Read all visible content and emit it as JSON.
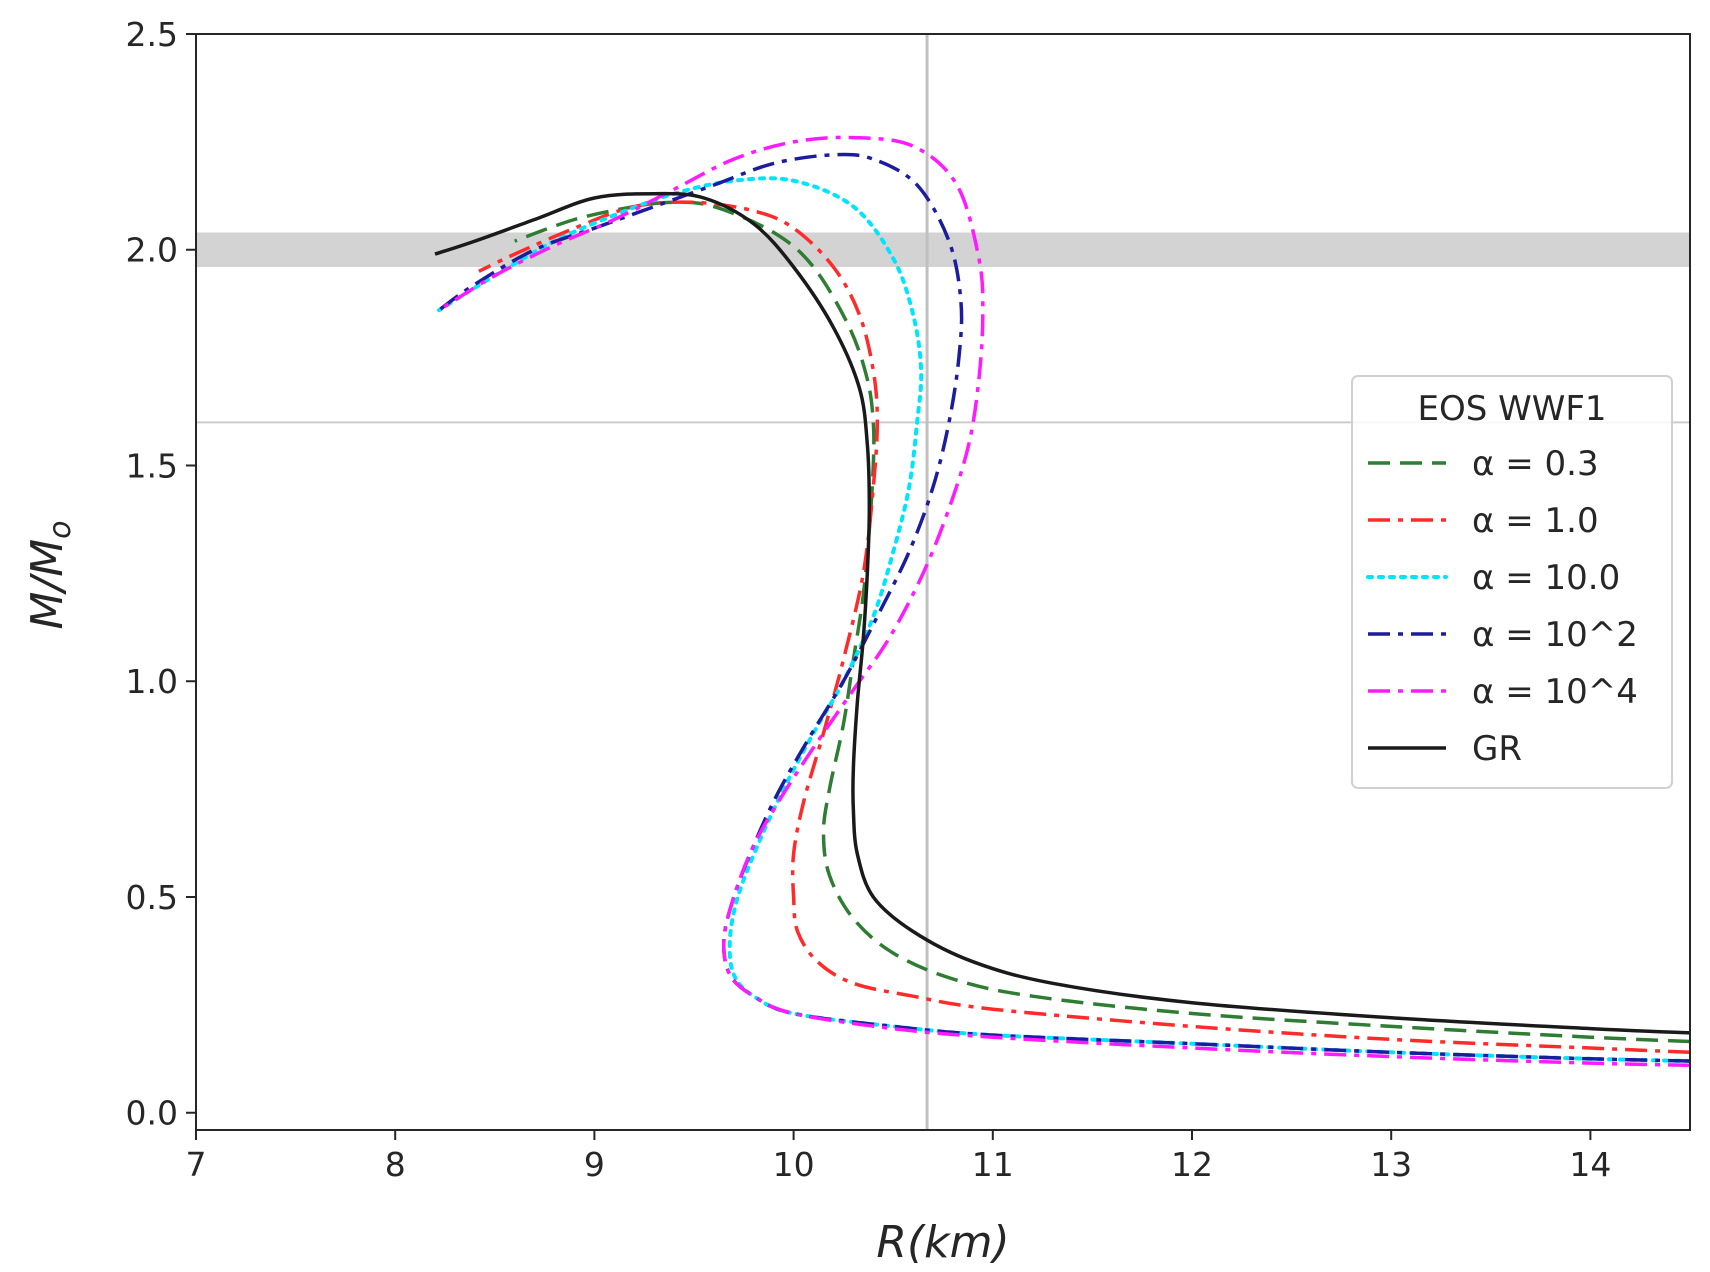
{
  "chart_data": {
    "type": "line",
    "title": "",
    "xlabel": "R(km)",
    "ylabel": "M/M",
    "ylabel_subscript": "o",
    "xlim": [
      7,
      14.5
    ],
    "ylim": [
      -0.04,
      2.5
    ],
    "xticks": [
      7,
      8,
      9,
      10,
      11,
      12,
      13,
      14
    ],
    "yticks": [
      0.0,
      0.5,
      1.0,
      1.5,
      2.0,
      2.5
    ],
    "xtick_labels": [
      "7",
      "8",
      "9",
      "10",
      "11",
      "12",
      "13",
      "14"
    ],
    "ytick_labels": [
      "0.0",
      "0.5",
      "1.0",
      "1.5",
      "2.0",
      "2.5"
    ],
    "grid": false,
    "reference_band": {
      "y_min": 1.96,
      "y_max": 2.04,
      "color": "#d3d3d3"
    },
    "reference_hline": {
      "y": 1.6,
      "color": "#cccccc"
    },
    "reference_vline": {
      "x": 10.67,
      "color": "#c0c0c0"
    },
    "legend": {
      "title": "EOS WWF1",
      "position": "center-right"
    },
    "series": [
      {
        "name": "α = 0.3",
        "color": "#2e7d32",
        "dash": "dashed",
        "points": [
          [
            14.5,
            0.165
          ],
          [
            14.0,
            0.175
          ],
          [
            13.0,
            0.2
          ],
          [
            12.0,
            0.23
          ],
          [
            11.2,
            0.27
          ],
          [
            10.8,
            0.31
          ],
          [
            10.5,
            0.37
          ],
          [
            10.3,
            0.45
          ],
          [
            10.18,
            0.55
          ],
          [
            10.15,
            0.65
          ],
          [
            10.18,
            0.75
          ],
          [
            10.25,
            0.9
          ],
          [
            10.3,
            1.05
          ],
          [
            10.35,
            1.2
          ],
          [
            10.38,
            1.35
          ],
          [
            10.4,
            1.5
          ],
          [
            10.4,
            1.6
          ],
          [
            10.37,
            1.7
          ],
          [
            10.28,
            1.82
          ],
          [
            10.1,
            1.96
          ],
          [
            9.9,
            2.04
          ],
          [
            9.6,
            2.1
          ],
          [
            9.4,
            2.11
          ],
          [
            9.2,
            2.1
          ],
          [
            8.9,
            2.07
          ],
          [
            8.6,
            2.02
          ]
        ]
      },
      {
        "name": "α = 1.0",
        "color": "#ff2a2a",
        "dash": "dashdot",
        "points": [
          [
            14.5,
            0.14
          ],
          [
            14.0,
            0.15
          ],
          [
            13.0,
            0.17
          ],
          [
            12.0,
            0.2
          ],
          [
            11.0,
            0.24
          ],
          [
            10.6,
            0.27
          ],
          [
            10.3,
            0.3
          ],
          [
            10.12,
            0.35
          ],
          [
            10.02,
            0.42
          ],
          [
            10.0,
            0.5
          ],
          [
            10.0,
            0.6
          ],
          [
            10.05,
            0.72
          ],
          [
            10.15,
            0.88
          ],
          [
            10.25,
            1.05
          ],
          [
            10.35,
            1.25
          ],
          [
            10.4,
            1.45
          ],
          [
            10.42,
            1.6
          ],
          [
            10.4,
            1.72
          ],
          [
            10.33,
            1.85
          ],
          [
            10.2,
            1.96
          ],
          [
            10.0,
            2.05
          ],
          [
            9.8,
            2.09
          ],
          [
            9.5,
            2.11
          ],
          [
            9.2,
            2.1
          ],
          [
            8.9,
            2.05
          ],
          [
            8.6,
            1.99
          ],
          [
            8.42,
            1.95
          ]
        ]
      },
      {
        "name": "α = 10.0",
        "color": "#00e5ff",
        "dash": "dotted",
        "points": [
          [
            14.5,
            0.12
          ],
          [
            14.0,
            0.125
          ],
          [
            13.0,
            0.14
          ],
          [
            12.0,
            0.16
          ],
          [
            11.0,
            0.18
          ],
          [
            10.5,
            0.2
          ],
          [
            10.0,
            0.23
          ],
          [
            9.8,
            0.27
          ],
          [
            9.7,
            0.32
          ],
          [
            9.68,
            0.4
          ],
          [
            9.72,
            0.5
          ],
          [
            9.82,
            0.62
          ],
          [
            9.95,
            0.75
          ],
          [
            10.1,
            0.88
          ],
          [
            10.25,
            1.0
          ],
          [
            10.4,
            1.15
          ],
          [
            10.5,
            1.3
          ],
          [
            10.58,
            1.45
          ],
          [
            10.62,
            1.6
          ],
          [
            10.64,
            1.72
          ],
          [
            10.6,
            1.85
          ],
          [
            10.5,
            1.98
          ],
          [
            10.3,
            2.1
          ],
          [
            10.0,
            2.16
          ],
          [
            9.7,
            2.16
          ],
          [
            9.4,
            2.13
          ],
          [
            9.1,
            2.08
          ],
          [
            8.8,
            2.02
          ],
          [
            8.5,
            1.94
          ],
          [
            8.22,
            1.86
          ]
        ]
      },
      {
        "name": "α = 10^2",
        "color": "#1c1c9e",
        "dash": "dashdot",
        "points": [
          [
            14.5,
            0.12
          ],
          [
            14.0,
            0.125
          ],
          [
            13.0,
            0.14
          ],
          [
            12.0,
            0.16
          ],
          [
            11.0,
            0.18
          ],
          [
            10.5,
            0.2
          ],
          [
            10.0,
            0.23
          ],
          [
            9.8,
            0.27
          ],
          [
            9.68,
            0.32
          ],
          [
            9.65,
            0.4
          ],
          [
            9.7,
            0.5
          ],
          [
            9.8,
            0.62
          ],
          [
            9.92,
            0.74
          ],
          [
            10.08,
            0.87
          ],
          [
            10.25,
            1.0
          ],
          [
            10.42,
            1.15
          ],
          [
            10.58,
            1.3
          ],
          [
            10.7,
            1.45
          ],
          [
            10.78,
            1.6
          ],
          [
            10.83,
            1.75
          ],
          [
            10.84,
            1.88
          ],
          [
            10.78,
            2.02
          ],
          [
            10.62,
            2.15
          ],
          [
            10.4,
            2.21
          ],
          [
            10.2,
            2.22
          ],
          [
            9.9,
            2.2
          ],
          [
            9.6,
            2.15
          ],
          [
            9.3,
            2.1
          ],
          [
            9.0,
            2.05
          ],
          [
            8.7,
            2.0
          ],
          [
            8.4,
            1.92
          ],
          [
            8.22,
            1.86
          ]
        ]
      },
      {
        "name": "α = 10^4",
        "color": "#ff1aff",
        "dash": "dashdot",
        "points": [
          [
            14.5,
            0.11
          ],
          [
            14.0,
            0.115
          ],
          [
            13.0,
            0.13
          ],
          [
            12.0,
            0.15
          ],
          [
            11.0,
            0.175
          ],
          [
            10.5,
            0.195
          ],
          [
            10.0,
            0.23
          ],
          [
            9.8,
            0.27
          ],
          [
            9.68,
            0.32
          ],
          [
            9.65,
            0.4
          ],
          [
            9.7,
            0.5
          ],
          [
            9.8,
            0.62
          ],
          [
            9.95,
            0.74
          ],
          [
            10.12,
            0.86
          ],
          [
            10.3,
            0.98
          ],
          [
            10.48,
            1.1
          ],
          [
            10.65,
            1.25
          ],
          [
            10.78,
            1.4
          ],
          [
            10.88,
            1.55
          ],
          [
            10.93,
            1.7
          ],
          [
            10.95,
            1.85
          ],
          [
            10.93,
            1.98
          ],
          [
            10.82,
            2.15
          ],
          [
            10.6,
            2.24
          ],
          [
            10.3,
            2.26
          ],
          [
            10.0,
            2.25
          ],
          [
            9.7,
            2.21
          ],
          [
            9.4,
            2.14
          ],
          [
            9.1,
            2.07
          ],
          [
            8.8,
            2.01
          ],
          [
            8.5,
            1.94
          ],
          [
            8.22,
            1.86
          ]
        ]
      },
      {
        "name": "GR",
        "color": "#1a1a1a",
        "dash": "solid",
        "points": [
          [
            14.5,
            0.185
          ],
          [
            14.0,
            0.195
          ],
          [
            13.0,
            0.22
          ],
          [
            12.0,
            0.255
          ],
          [
            11.3,
            0.3
          ],
          [
            10.9,
            0.35
          ],
          [
            10.6,
            0.42
          ],
          [
            10.4,
            0.5
          ],
          [
            10.32,
            0.6
          ],
          [
            10.3,
            0.7
          ],
          [
            10.3,
            0.8
          ],
          [
            10.32,
            0.95
          ],
          [
            10.35,
            1.1
          ],
          [
            10.37,
            1.25
          ],
          [
            10.38,
            1.4
          ],
          [
            10.37,
            1.55
          ],
          [
            10.33,
            1.68
          ],
          [
            10.2,
            1.82
          ],
          [
            10.0,
            1.96
          ],
          [
            9.8,
            2.06
          ],
          [
            9.55,
            2.12
          ],
          [
            9.3,
            2.13
          ],
          [
            9.0,
            2.12
          ],
          [
            8.7,
            2.07
          ],
          [
            8.4,
            2.02
          ],
          [
            8.2,
            1.99
          ]
        ]
      }
    ]
  }
}
